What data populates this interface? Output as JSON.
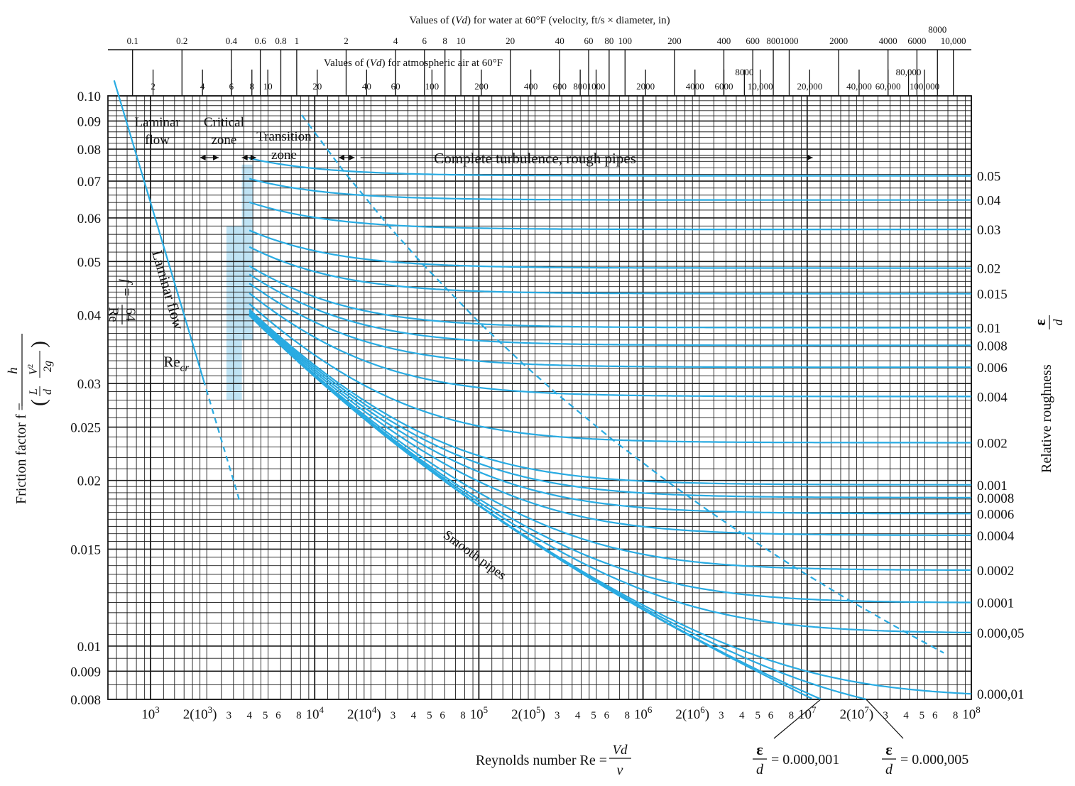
{
  "colors": {
    "curve": "#29abe2",
    "grid": "#1a1a1a",
    "shade": "#bfe3f4",
    "text": "#111111"
  },
  "chart_data": {
    "type": "line",
    "x_scale": "log",
    "y_scale": "log",
    "xlim": [
      550,
      100000000
    ],
    "ylim": [
      0.008,
      0.1
    ],
    "grid": true,
    "x_tick_labels": [
      {
        "v": 1000,
        "label": "10",
        "sup": "3"
      },
      {
        "v": 2000,
        "label": "2(10",
        "sup": "3",
        "tail": ")"
      },
      {
        "v": 3000,
        "label": "3",
        "small": true
      },
      {
        "v": 4000,
        "label": "4",
        "small": true
      },
      {
        "v": 5000,
        "label": "5",
        "small": true
      },
      {
        "v": 6000,
        "label": "6",
        "small": true
      },
      {
        "v": 8000,
        "label": "8",
        "small": true
      },
      {
        "v": 10000,
        "label": "10",
        "sup": "4"
      },
      {
        "v": 20000,
        "label": "2(10",
        "sup": "4",
        "tail": ")"
      },
      {
        "v": 30000,
        "label": "3",
        "small": true
      },
      {
        "v": 40000,
        "label": "4",
        "small": true
      },
      {
        "v": 50000,
        "label": "5",
        "small": true
      },
      {
        "v": 60000,
        "label": "6",
        "small": true
      },
      {
        "v": 80000,
        "label": "8",
        "small": true
      },
      {
        "v": 100000,
        "label": "10",
        "sup": "5"
      },
      {
        "v": 200000,
        "label": "2(10",
        "sup": "5",
        "tail": ")"
      },
      {
        "v": 300000,
        "label": "3",
        "small": true
      },
      {
        "v": 400000,
        "label": "4",
        "small": true
      },
      {
        "v": 500000,
        "label": "5",
        "small": true
      },
      {
        "v": 600000,
        "label": "6",
        "small": true
      },
      {
        "v": 800000,
        "label": "8",
        "small": true
      },
      {
        "v": 1000000,
        "label": "10",
        "sup": "6"
      },
      {
        "v": 2000000,
        "label": "2(10",
        "sup": "6",
        "tail": ")"
      },
      {
        "v": 3000000,
        "label": "3",
        "small": true
      },
      {
        "v": 4000000,
        "label": "4",
        "small": true
      },
      {
        "v": 5000000,
        "label": "5",
        "small": true
      },
      {
        "v": 6000000,
        "label": "6",
        "small": true
      },
      {
        "v": 8000000,
        "label": "8",
        "small": true
      },
      {
        "v": 10000000,
        "label": "10",
        "sup": "7"
      },
      {
        "v": 20000000,
        "label": "2(10",
        "sup": "7",
        "tail": ")"
      },
      {
        "v": 30000000,
        "label": "3",
        "small": true
      },
      {
        "v": 40000000,
        "label": "4",
        "small": true
      },
      {
        "v": 50000000,
        "label": "5",
        "small": true
      },
      {
        "v": 60000000,
        "label": "6",
        "small": true
      },
      {
        "v": 80000000,
        "label": "8",
        "small": true
      },
      {
        "v": 100000000,
        "label": "10",
        "sup": "8"
      }
    ],
    "y_ticks": [
      {
        "v": 0.1,
        "label": "0.10"
      },
      {
        "v": 0.09,
        "label": "0.09"
      },
      {
        "v": 0.08,
        "label": "0.08"
      },
      {
        "v": 0.07,
        "label": "0.07"
      },
      {
        "v": 0.06,
        "label": "0.06"
      },
      {
        "v": 0.05,
        "label": "0.05"
      },
      {
        "v": 0.04,
        "label": "0.04"
      },
      {
        "v": 0.03,
        "label": "0.03"
      },
      {
        "v": 0.025,
        "label": "0.025"
      },
      {
        "v": 0.02,
        "label": "0.02"
      },
      {
        "v": 0.015,
        "label": "0.015"
      },
      {
        "v": 0.01,
        "label": "0.01"
      },
      {
        "v": 0.009,
        "label": "0.009"
      },
      {
        "v": 0.008,
        "label": "0.008"
      }
    ],
    "ylabel": {
      "prefix": "Friction factor f =",
      "num": "h",
      "den_l": "L",
      "den_d": "d",
      "den_v": "V",
      "den_2g": "2g"
    },
    "xlabel": {
      "prefix": "Reynolds number Re =",
      "num": "Vd",
      "den": "ν"
    },
    "right_label": {
      "prefix": "Relative roughness",
      "num": "ε",
      "den": "d"
    },
    "relative_roughness": [
      {
        "rr": 0.05,
        "label": "0.05"
      },
      {
        "rr": 0.04,
        "label": "0.04"
      },
      {
        "rr": 0.03,
        "label": "0.03"
      },
      {
        "rr": 0.02,
        "label": "0.02"
      },
      {
        "rr": 0.015,
        "label": "0.015"
      },
      {
        "rr": 0.01,
        "label": "0.01"
      },
      {
        "rr": 0.008,
        "label": "0.008"
      },
      {
        "rr": 0.006,
        "label": "0.006"
      },
      {
        "rr": 0.004,
        "label": "0.004"
      },
      {
        "rr": 0.002,
        "label": "0.002"
      },
      {
        "rr": 0.001,
        "label": "0.001"
      },
      {
        "rr": 0.0008,
        "label": "0.0008"
      },
      {
        "rr": 0.0006,
        "label": "0.0006"
      },
      {
        "rr": 0.0004,
        "label": "0.0004"
      },
      {
        "rr": 0.0002,
        "label": "0.0002"
      },
      {
        "rr": 0.0001,
        "label": "0.0001"
      },
      {
        "rr": 5e-05,
        "label": "0.000,05"
      },
      {
        "rr": 1e-05,
        "label": "0.000,01"
      },
      {
        "rr": 5e-06,
        "label": ""
      },
      {
        "rr": 1e-06,
        "label": ""
      }
    ],
    "bottom_annotations": [
      {
        "num": "ε",
        "den": "d",
        "value": "= 0.000,001",
        "rr": 1e-06
      },
      {
        "num": "ε",
        "den": "d",
        "value": "= 0.000,005",
        "rr": 5e-06
      }
    ],
    "laminar": {
      "re_from": 600,
      "re_solid_to": 2100,
      "re_dash_to": 3500
    },
    "critical_zone": {
      "re_from": 2000,
      "re_to": 4000
    },
    "zone_labels": {
      "laminar": [
        "Laminar",
        "flow"
      ],
      "critical": [
        "Critical",
        "zone"
      ],
      "transition": [
        "Transition",
        "zone"
      ],
      "turbulence": "Complete turbulence, rough pipes",
      "laminar_formula": {
        "lhs": "f =",
        "num": "64",
        "den": "Re"
      },
      "laminar_flow_rot": "Laminar flow",
      "recr": "Re",
      "recr_sub": "cr",
      "smooth": "Smooth pipes"
    },
    "top_scales": {
      "water_title": {
        "pre": "Values of (",
        "var": "Vd",
        "post": ") for water at 60°F (velocity, ft/s × diameter, in)"
      },
      "air_title": {
        "pre": "Values of (",
        "var": "Vd",
        "post": ") for atmospheric air at 60°F"
      },
      "water_factor": 7770,
      "air_factor": 518,
      "water_ticks": [
        {
          "v": 0.1,
          "label": "0.1"
        },
        {
          "v": 0.2,
          "label": "0.2"
        },
        {
          "v": 0.4,
          "label": "0.4"
        },
        {
          "v": 0.6,
          "label": "0.6"
        },
        {
          "v": 0.8,
          "label": "0.8"
        },
        {
          "v": 1,
          "label": "1"
        },
        {
          "v": 2,
          "label": "2"
        },
        {
          "v": 4,
          "label": "4"
        },
        {
          "v": 6,
          "label": "6"
        },
        {
          "v": 8,
          "label": "8"
        },
        {
          "v": 10,
          "label": "10"
        },
        {
          "v": 20,
          "label": "20"
        },
        {
          "v": 40,
          "label": "40"
        },
        {
          "v": 60,
          "label": "60"
        },
        {
          "v": 80,
          "label": "80"
        },
        {
          "v": 100,
          "label": "100"
        },
        {
          "v": 200,
          "label": "200"
        },
        {
          "v": 400,
          "label": "400"
        },
        {
          "v": 600,
          "label": "600"
        },
        {
          "v": 800,
          "label": "800"
        },
        {
          "v": 1000,
          "label": "1000"
        },
        {
          "v": 2000,
          "label": "2000"
        },
        {
          "v": 4000,
          "label": "4000"
        },
        {
          "v": 6000,
          "label": "6000"
        },
        {
          "v": 8000,
          "label": "8000",
          "raised": true
        },
        {
          "v": 10000,
          "label": "10,000"
        }
      ],
      "air_ticks": [
        {
          "v": 2,
          "label": "2"
        },
        {
          "v": 4,
          "label": "4"
        },
        {
          "v": 6,
          "label": "6"
        },
        {
          "v": 8,
          "label": "8"
        },
        {
          "v": 10,
          "label": "10"
        },
        {
          "v": 20,
          "label": "20"
        },
        {
          "v": 40,
          "label": "40"
        },
        {
          "v": 60,
          "label": "60"
        },
        {
          "v": 100,
          "label": "100"
        },
        {
          "v": 200,
          "label": "200"
        },
        {
          "v": 400,
          "label": "400"
        },
        {
          "v": 600,
          "label": "600"
        },
        {
          "v": 800,
          "label": "800"
        },
        {
          "v": 1000,
          "label": "1000"
        },
        {
          "v": 2000,
          "label": "2000"
        },
        {
          "v": 4000,
          "label": "4000"
        },
        {
          "v": 6000,
          "label": "6000"
        },
        {
          "v": 8000,
          "label": "8000",
          "raised": true
        },
        {
          "v": 10000,
          "label": "10,000"
        },
        {
          "v": 20000,
          "label": "20,000"
        },
        {
          "v": 40000,
          "label": "40,000"
        },
        {
          "v": 60000,
          "label": "60,000"
        },
        {
          "v": 80000,
          "label": "80,000",
          "raised": true
        },
        {
          "v": 100000,
          "label": "100,000"
        }
      ]
    }
  }
}
